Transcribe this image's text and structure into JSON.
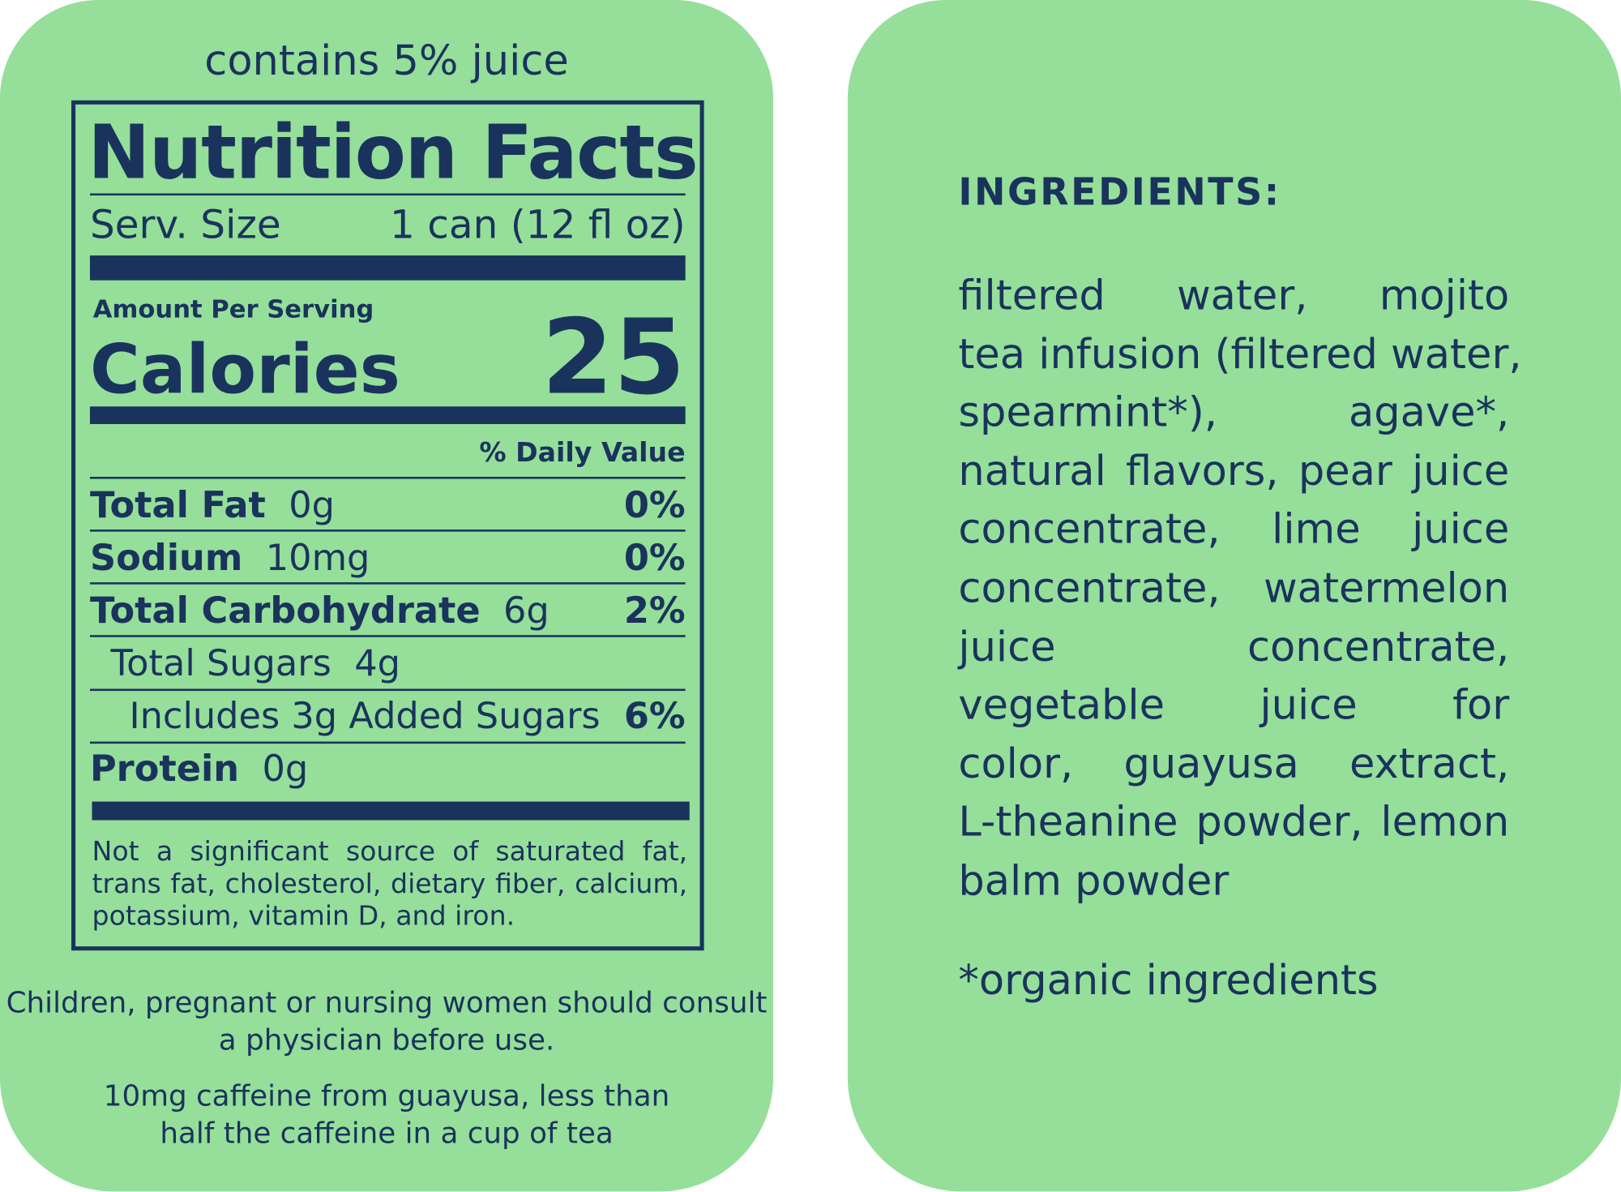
{
  "colors": {
    "background": "#95DF9A",
    "ink": "#1A335C"
  },
  "left": {
    "juice_note": "contains 5% juice",
    "title": "Nutrition Facts",
    "serving_label": "Serv. Size",
    "serving_value": "1 can (12 fl oz)",
    "amount_per_serving": "Amount Per Serving",
    "calories_label": "Calories",
    "calories_value": "25",
    "daily_value_header": "% Daily Value",
    "nutrients": [
      {
        "name": "Total Fat",
        "amount": "0g",
        "dv": "0%"
      },
      {
        "name": "Sodium",
        "amount": "10mg",
        "dv": "0%"
      },
      {
        "name": "Total Carbohydrate",
        "amount": "6g",
        "dv": "2%"
      },
      {
        "name": "Total Sugars",
        "amount": "4g",
        "dv": ""
      },
      {
        "name": "Includes 3g Added Sugars",
        "amount": "",
        "dv": "6%"
      },
      {
        "name": "Protein",
        "amount": "0g",
        "dv": ""
      }
    ],
    "footnote": "Not a significant source of saturated fat, trans fat, cholesterol, dietary fiber, calcium, potassium, vitamin D, and iron.",
    "warning": "Children, pregnant or nursing women should consult a physician before use.",
    "caffeine": "10mg caffeine from guayusa, less than half the caffeine in a cup of tea"
  },
  "right": {
    "title": "INGREDIENTS:",
    "lines": [
      "filtered water, mojito",
      "tea infusion (filtered water,",
      "spearmint*), agave*,",
      "natural flavors, pear juice",
      "concentrate, lime juice",
      "concentrate, watermelon",
      "juice concentrate,",
      "vegetable juice for",
      "color, guayusa extract,",
      "L-theanine powder, lemon",
      "balm powder"
    ],
    "organic_note": "*organic ingredients"
  }
}
